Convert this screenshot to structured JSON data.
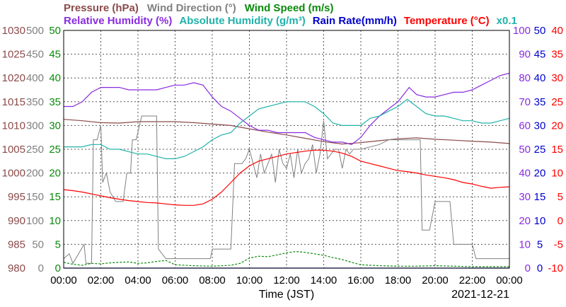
{
  "legend": {
    "row1": [
      {
        "label": "Pressure (hPa)",
        "color": "#8b4a4a"
      },
      {
        "label": "Wind Direction (°)",
        "color": "#808080"
      },
      {
        "label": "Wind Speed (m/s)",
        "color": "#0a8a0a"
      }
    ],
    "row2": [
      {
        "label": "Relative Humidity (%)",
        "color": "#8a2be2"
      },
      {
        "label": "Absolute Humidity (g/m³)",
        "color": "#20b2aa"
      },
      {
        "label": "Rain Rate(mm/h)",
        "color": "#0000cc"
      },
      {
        "label": "Temperature (°C)",
        "color": "#ff0000"
      },
      {
        "label": "x0.1",
        "color": "#20b2aa"
      }
    ]
  },
  "footer": {
    "xlabel": "Time (JST)",
    "date": "2021-12-21"
  },
  "chart_data": {
    "type": "line",
    "x_ticks": [
      "00:00",
      "02:00",
      "04:00",
      "06:00",
      "08:00",
      "10:00",
      "12:00",
      "14:00",
      "16:00",
      "18:00",
      "20:00",
      "22:00",
      "00:00"
    ],
    "axes": {
      "pressure": {
        "label": "Pressure (hPa)",
        "color": "#8b4a4a",
        "range": [
          980,
          1030
        ],
        "ticks": [
          1030,
          1025,
          1020,
          1015,
          1010,
          1005,
          1000,
          995,
          990,
          985,
          980
        ]
      },
      "wind_direction": {
        "label": "Wind Direction (°)",
        "color": "#808080",
        "range": [
          0,
          500
        ],
        "ticks": [
          500,
          450,
          400,
          350,
          300,
          250,
          200,
          150,
          100,
          50,
          0
        ]
      },
      "wind_speed": {
        "label": "Wind Speed (m/s)",
        "color": "#0a8a0a",
        "range": [
          0,
          50
        ],
        "ticks": [
          50,
          45,
          40,
          35,
          30,
          25,
          20,
          15,
          10,
          5,
          0
        ]
      },
      "humidity": {
        "label": "Relative Humidity (%)",
        "color": "#8a2be2",
        "range": [
          0,
          100
        ],
        "ticks": [
          100,
          90,
          80,
          70,
          60,
          50,
          40,
          30,
          20,
          10,
          0
        ]
      },
      "rain_rate": {
        "label": "Rain Rate(mm/h)",
        "color": "#0000cc",
        "range": [
          0,
          50
        ],
        "ticks": [
          50,
          45,
          40,
          35,
          30,
          25,
          20,
          15,
          10,
          5,
          0
        ]
      },
      "temperature": {
        "label": "Temperature (°C)",
        "color": "#ff0000",
        "range": [
          -10,
          40
        ],
        "ticks": [
          40,
          35,
          30,
          25,
          20,
          15,
          10,
          5,
          0,
          -5,
          -10
        ]
      }
    },
    "series": [
      {
        "name": "Pressure (hPa)",
        "axis": "pressure",
        "color": "#8b4a4a",
        "x": [
          0,
          1,
          2,
          3,
          4,
          5,
          6,
          7,
          8,
          9,
          10,
          11,
          12,
          13,
          14,
          15,
          16,
          17,
          18,
          19,
          20,
          21,
          22,
          23,
          24
        ],
        "y": [
          1011.3,
          1011.0,
          1010.6,
          1010.5,
          1010.8,
          1010.8,
          1010.8,
          1010.6,
          1010.3,
          1010.0,
          1009.3,
          1008.6,
          1008.0,
          1007.3,
          1006.6,
          1006.1,
          1006.4,
          1006.8,
          1007.2,
          1007.4,
          1007.1,
          1006.9,
          1006.7,
          1006.5,
          1006.2
        ]
      },
      {
        "name": "Wind Direction (°)",
        "axis": "wind_direction",
        "color": "#808080",
        "x": [
          0,
          0.3,
          0.5,
          1.1,
          1.2,
          1.5,
          1.6,
          1.8,
          2.0,
          2.1,
          2.3,
          2.5,
          2.8,
          3.0,
          3.2,
          3.4,
          3.6,
          3.7,
          3.9,
          4.2,
          4.6,
          5.0,
          5.1,
          5.3,
          5.5,
          6.0,
          7.0,
          7.9,
          8.0,
          8.5,
          9.0,
          9.2,
          9.6,
          9.8,
          10.0,
          10.2,
          10.4,
          10.6,
          10.8,
          11.0,
          11.2,
          11.4,
          11.6,
          11.8,
          12.0,
          12.2,
          12.4,
          12.6,
          12.8,
          13.0,
          13.2,
          13.4,
          13.6,
          13.8,
          14.0,
          14.2,
          14.4,
          14.6,
          14.8,
          15.0,
          15.2,
          15.4,
          15.6,
          16.0,
          17.0,
          17.5,
          18.0,
          18.9,
          19.2,
          19.3,
          19.6,
          19.7,
          20.0,
          20.5,
          20.8,
          21.0,
          21.5,
          22.0,
          22.2,
          23.0,
          24.0
        ],
        "y": [
          20,
          30,
          10,
          50,
          10,
          10,
          270,
          270,
          300,
          180,
          200,
          160,
          140,
          140,
          140,
          200,
          200,
          270,
          270,
          320,
          320,
          320,
          40,
          30,
          20,
          20,
          20,
          20,
          40,
          40,
          40,
          220,
          220,
          230,
          250,
          220,
          190,
          240,
          200,
          220,
          240,
          180,
          250,
          220,
          210,
          240,
          190,
          250,
          200,
          220,
          230,
          260,
          200,
          240,
          310,
          230,
          240,
          250,
          250,
          210,
          250,
          240,
          250,
          250,
          260,
          270,
          270,
          270,
          270,
          80,
          80,
          80,
          140,
          140,
          140,
          50,
          50,
          50,
          20,
          20,
          20
        ]
      },
      {
        "name": "Wind Speed (m/s)",
        "axis": "wind_speed",
        "color": "#0a8a0a",
        "x": [
          0,
          0.5,
          1.0,
          1.5,
          2.0,
          2.5,
          3.0,
          3.5,
          4.0,
          4.5,
          5.0,
          5.5,
          6.0,
          7.0,
          8.0,
          9.0,
          9.5,
          10.0,
          10.5,
          11.0,
          11.5,
          12.0,
          12.5,
          13.0,
          13.5,
          14.0,
          14.5,
          15.0,
          15.5,
          16.0,
          17.0,
          18.0,
          19.0,
          20.0,
          21.0,
          22.0,
          23.0,
          24.0
        ],
        "y": [
          1.2,
          0.8,
          0.6,
          1.0,
          0.9,
          1.1,
          1.2,
          1.3,
          1.0,
          1.1,
          1.4,
          1.6,
          0.7,
          0.5,
          0.4,
          0.6,
          1.0,
          2.1,
          2.5,
          2.4,
          2.8,
          3.2,
          3.5,
          3.3,
          3.0,
          2.7,
          2.2,
          1.8,
          1.2,
          0.7,
          0.5,
          0.4,
          0.4,
          0.5,
          0.4,
          0.3,
          0.3,
          0.3
        ]
      },
      {
        "name": "Relative Humidity (%)",
        "axis": "humidity",
        "color": "#8a2be2",
        "x": [
          0,
          0.5,
          1.0,
          1.5,
          2.0,
          2.5,
          3.0,
          3.5,
          4.0,
          4.5,
          5.0,
          5.5,
          6.0,
          6.5,
          7.0,
          7.5,
          8.0,
          8.5,
          9.0,
          9.5,
          10.0,
          10.5,
          11.0,
          11.5,
          12.0,
          12.5,
          13.0,
          13.5,
          14.0,
          14.5,
          15.0,
          15.5,
          16.0,
          16.5,
          17.0,
          17.5,
          18.0,
          18.3,
          18.6,
          19.0,
          19.5,
          20.0,
          20.5,
          21.0,
          21.5,
          22.0,
          22.5,
          23.0,
          23.5,
          24.0
        ],
        "y": [
          68,
          68,
          70,
          74,
          76,
          76,
          76,
          75,
          75,
          75,
          75,
          76,
          77,
          77,
          78,
          77,
          72,
          68,
          66,
          63,
          60,
          58,
          58,
          57,
          57,
          57,
          57,
          55,
          54,
          53,
          53,
          52,
          55,
          60,
          64,
          67,
          70,
          73,
          76,
          73,
          72,
          72,
          73,
          74,
          74,
          75,
          77,
          79,
          81,
          82
        ]
      },
      {
        "name": "Absolute Humidity (g/m³)",
        "axis": "humidity",
        "color": "#20b2aa",
        "x": [
          0,
          0.5,
          1.0,
          1.5,
          2.0,
          2.5,
          3.0,
          3.5,
          4.0,
          4.5,
          5.0,
          5.5,
          6.0,
          6.5,
          7.0,
          7.5,
          8.0,
          8.5,
          9.0,
          9.5,
          10.0,
          10.5,
          11.0,
          11.5,
          12.0,
          12.5,
          13.0,
          13.5,
          14.0,
          14.5,
          15.0,
          15.5,
          16.0,
          16.5,
          17.0,
          17.5,
          18.0,
          18.5,
          19.0,
          19.5,
          20.0,
          20.5,
          21.0,
          21.5,
          22.0,
          22.5,
          23.0,
          23.5,
          24.0
        ],
        "y": [
          51,
          51,
          51,
          52,
          52,
          50,
          50,
          49,
          48,
          48,
          47,
          46,
          46,
          47,
          49,
          51,
          54,
          56,
          57,
          61,
          64,
          67,
          68,
          69,
          70,
          70,
          70,
          68,
          65,
          61,
          60,
          60,
          60,
          63,
          64,
          66,
          68,
          71,
          68,
          65,
          64,
          64,
          63,
          62,
          62,
          61,
          61,
          62,
          63
        ]
      },
      {
        "name": "Rain Rate(mm/h)",
        "axis": "rain_rate",
        "color": "#0000cc",
        "x": [
          0,
          24
        ],
        "y": [
          0,
          0
        ]
      },
      {
        "name": "Temperature (°C)",
        "axis": "temperature",
        "color": "#ff0000",
        "x": [
          0,
          0.5,
          1.0,
          1.5,
          2.0,
          2.5,
          3.0,
          3.5,
          4.0,
          4.5,
          5.0,
          5.5,
          6.0,
          6.5,
          7.0,
          7.5,
          8.0,
          8.5,
          9.0,
          9.5,
          10.0,
          10.5,
          11.0,
          11.5,
          12.0,
          12.5,
          13.0,
          13.5,
          14.0,
          14.5,
          15.0,
          15.5,
          16.0,
          16.5,
          17.0,
          17.5,
          18.0,
          18.5,
          19.0,
          19.5,
          20.0,
          20.5,
          21.0,
          21.5,
          22.0,
          22.5,
          23.0,
          23.5,
          24.0
        ],
        "y": [
          6.5,
          6.3,
          6.0,
          5.6,
          5.2,
          4.8,
          4.5,
          4.2,
          4.0,
          3.8,
          3.7,
          3.5,
          3.3,
          3.2,
          3.2,
          3.5,
          4.5,
          6.0,
          8.0,
          10.0,
          11.5,
          12.5,
          13.0,
          13.5,
          14.0,
          14.3,
          14.6,
          14.8,
          14.8,
          14.6,
          14.2,
          13.5,
          12.5,
          12.0,
          11.5,
          11.0,
          10.5,
          10.3,
          10.0,
          9.6,
          9.3,
          9.0,
          8.6,
          8.0,
          7.7,
          7.2,
          6.8,
          7.0,
          7.1
        ]
      }
    ]
  }
}
